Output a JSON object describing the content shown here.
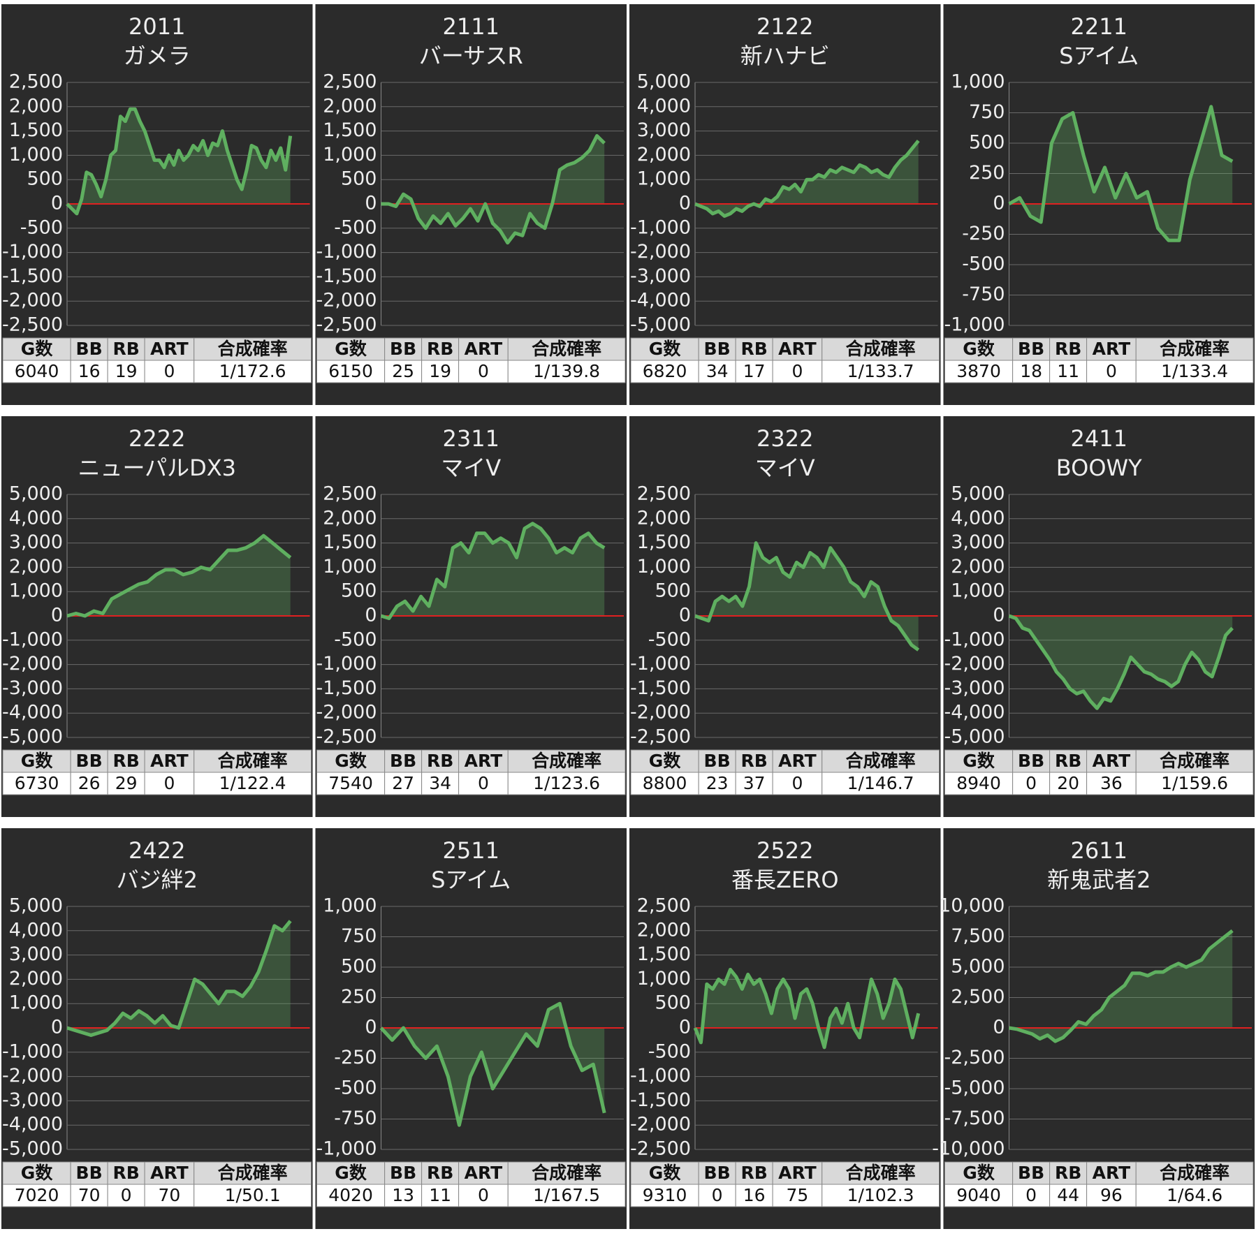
{
  "chart_data": [
    {
      "type": "line",
      "title": "2011",
      "subtitle": "ガメラ",
      "color": "#5fb060",
      "baseline_color": "#e02020",
      "values": [
        0,
        -100,
        -200,
        100,
        650,
        600,
        400,
        150,
        500,
        1000,
        1100,
        1800,
        1700,
        1950,
        1950,
        1700,
        1500,
        1200,
        900,
        900,
        750,
        1000,
        800,
        1100,
        900,
        1000,
        1200,
        1100,
        1300,
        1000,
        1250,
        1200,
        1500,
        1100,
        800,
        500,
        300,
        700,
        1200,
        1150,
        900,
        750,
        1100,
        900,
        1150,
        700,
        1400
      ],
      "ylim": [
        -2500,
        2500
      ],
      "yticks": [
        {
          "value": -2500,
          "label": "-2,500"
        },
        {
          "value": -2000,
          "label": "-2,000"
        },
        {
          "value": -1500,
          "label": "-1,500"
        },
        {
          "value": -1000,
          "label": "-1,000"
        },
        -500,
        0,
        500,
        {
          "value": 1000,
          "label": "1,000"
        },
        {
          "value": 1500,
          "label": "1,500"
        },
        {
          "value": 2000,
          "label": "2,000"
        },
        {
          "value": 2500,
          "label": "2,500"
        }
      ],
      "grid": true,
      "table": {
        "columns": [
          "G数",
          "BB",
          "RB",
          "ART",
          "合成確率"
        ],
        "row": [
          6040,
          16,
          19,
          0,
          "1/172.6"
        ]
      }
    },
    {
      "type": "line",
      "title": "2111",
      "subtitle": "バーサスR",
      "color": "#5fb060",
      "baseline_color": "#e02020",
      "values": [
        0,
        0,
        -50,
        200,
        100,
        -300,
        -500,
        -250,
        -400,
        -200,
        -450,
        -300,
        -100,
        -350,
        0,
        -400,
        -550,
        -800,
        -600,
        -650,
        -200,
        -400,
        -500,
        0,
        700,
        800,
        850,
        950,
        1100,
        1400,
        1250
      ],
      "ylim": [
        -2500,
        2500
      ],
      "yticks": [
        {
          "value": -2500,
          "label": "-2,500"
        },
        {
          "value": -2000,
          "label": "-2,000"
        },
        {
          "value": -1500,
          "label": "-1,500"
        },
        {
          "value": -1000,
          "label": "-1,000"
        },
        -500,
        0,
        500,
        {
          "value": 1000,
          "label": "1,000"
        },
        {
          "value": 1500,
          "label": "1,500"
        },
        {
          "value": 2000,
          "label": "2,000"
        },
        {
          "value": 2500,
          "label": "2,500"
        }
      ],
      "grid": true,
      "table": {
        "columns": [
          "G数",
          "BB",
          "RB",
          "ART",
          "合成確率"
        ],
        "row": [
          6150,
          25,
          19,
          0,
          "1/139.8"
        ]
      }
    },
    {
      "type": "line",
      "title": "2122",
      "subtitle": "新ハナビ",
      "color": "#5fb060",
      "baseline_color": "#e02020",
      "values": [
        0,
        -100,
        -200,
        -400,
        -300,
        -500,
        -400,
        -200,
        -300,
        -100,
        0,
        -100,
        200,
        100,
        300,
        700,
        600,
        800,
        500,
        1000,
        1000,
        1200,
        1100,
        1400,
        1300,
        1500,
        1400,
        1300,
        1600,
        1500,
        1300,
        1400,
        1200,
        1100,
        1500,
        1800,
        2000,
        2300,
        2600
      ],
      "ylim": [
        -5000,
        5000
      ],
      "yticks": [
        {
          "value": -5000,
          "label": "-5,000"
        },
        {
          "value": -4000,
          "label": "-4,000"
        },
        {
          "value": -3000,
          "label": "-3,000"
        },
        {
          "value": -2000,
          "label": "-2,000"
        },
        {
          "value": -1000,
          "label": "-1,000"
        },
        0,
        {
          "value": 1000,
          "label": "1,000"
        },
        {
          "value": 2000,
          "label": "2,000"
        },
        {
          "value": 3000,
          "label": "3,000"
        },
        {
          "value": 4000,
          "label": "4,000"
        },
        {
          "value": 5000,
          "label": "5,000"
        }
      ],
      "grid": true,
      "table": {
        "columns": [
          "G数",
          "BB",
          "RB",
          "ART",
          "合成確率"
        ],
        "row": [
          6820,
          34,
          17,
          0,
          "1/133.7"
        ]
      }
    },
    {
      "type": "line",
      "title": "2211",
      "subtitle": "Sアイム",
      "color": "#5fb060",
      "baseline_color": "#e02020",
      "values": [
        0,
        50,
        -100,
        -150,
        500,
        700,
        750,
        400,
        100,
        300,
        50,
        250,
        50,
        100,
        -200,
        -300,
        -300,
        200,
        500,
        800,
        400,
        350
      ],
      "ylim": [
        -1000,
        1000
      ],
      "yticks": [
        {
          "value": -1000,
          "label": "-1,000"
        },
        -750,
        -500,
        -250,
        0,
        250,
        500,
        750,
        {
          "value": 1000,
          "label": "1,000"
        }
      ],
      "grid": true,
      "table": {
        "columns": [
          "G数",
          "BB",
          "RB",
          "ART",
          "合成確率"
        ],
        "row": [
          3870,
          18,
          11,
          0,
          "1/133.4"
        ]
      }
    },
    {
      "type": "line",
      "title": "2222",
      "subtitle": "ニューパルDX3",
      "color": "#5fb060",
      "baseline_color": "#e02020",
      "values": [
        0,
        100,
        0,
        200,
        100,
        700,
        900,
        1100,
        1300,
        1400,
        1700,
        1900,
        1900,
        1700,
        1800,
        2000,
        1900,
        2300,
        2700,
        2700,
        2800,
        3000,
        3300,
        3000,
        2700,
        2400
      ],
      "ylim": [
        -5000,
        5000
      ],
      "yticks": [
        {
          "value": -5000,
          "label": "-5,000"
        },
        {
          "value": -4000,
          "label": "-4,000"
        },
        {
          "value": -3000,
          "label": "-3,000"
        },
        {
          "value": -2000,
          "label": "-2,000"
        },
        {
          "value": -1000,
          "label": "-1,000"
        },
        0,
        {
          "value": 1000,
          "label": "1,000"
        },
        {
          "value": 2000,
          "label": "2,000"
        },
        {
          "value": 3000,
          "label": "3,000"
        },
        {
          "value": 4000,
          "label": "4,000"
        },
        {
          "value": 5000,
          "label": "5,000"
        }
      ],
      "grid": true,
      "table": {
        "columns": [
          "G数",
          "BB",
          "RB",
          "ART",
          "合成確率"
        ],
        "row": [
          6730,
          26,
          29,
          0,
          "1/122.4"
        ]
      }
    },
    {
      "type": "line",
      "title": "2311",
      "subtitle": "マイV",
      "color": "#5fb060",
      "baseline_color": "#e02020",
      "values": [
        0,
        -50,
        200,
        300,
        100,
        400,
        200,
        750,
        600,
        1400,
        1500,
        1300,
        1700,
        1700,
        1500,
        1600,
        1500,
        1200,
        1800,
        1900,
        1800,
        1600,
        1300,
        1400,
        1300,
        1600,
        1700,
        1500,
        1400
      ],
      "ylim": [
        -2500,
        2500
      ],
      "yticks": [
        {
          "value": -2500,
          "label": "-2,500"
        },
        {
          "value": -2000,
          "label": "-2,000"
        },
        {
          "value": -1500,
          "label": "-1,500"
        },
        {
          "value": -1000,
          "label": "-1,000"
        },
        -500,
        0,
        500,
        {
          "value": 1000,
          "label": "1,000"
        },
        {
          "value": 1500,
          "label": "1,500"
        },
        {
          "value": 2000,
          "label": "2,000"
        },
        {
          "value": 2500,
          "label": "2,500"
        }
      ],
      "grid": true,
      "table": {
        "columns": [
          "G数",
          "BB",
          "RB",
          "ART",
          "合成確率"
        ],
        "row": [
          7540,
          27,
          34,
          0,
          "1/123.6"
        ]
      }
    },
    {
      "type": "line",
      "title": "2322",
      "subtitle": "マイV",
      "color": "#5fb060",
      "baseline_color": "#e02020",
      "values": [
        0,
        -50,
        -100,
        300,
        400,
        300,
        400,
        200,
        600,
        1500,
        1200,
        1100,
        1200,
        900,
        800,
        1100,
        1000,
        1300,
        1200,
        1000,
        1400,
        1200,
        1000,
        700,
        600,
        400,
        700,
        600,
        200,
        -100,
        -200,
        -400,
        -600,
        -700
      ],
      "ylim": [
        -2500,
        2500
      ],
      "yticks": [
        {
          "value": -2500,
          "label": "-2,500"
        },
        {
          "value": -2000,
          "label": "-2,000"
        },
        {
          "value": -1500,
          "label": "-1,500"
        },
        {
          "value": -1000,
          "label": "-1,000"
        },
        -500,
        0,
        500,
        {
          "value": 1000,
          "label": "1,000"
        },
        {
          "value": 1500,
          "label": "1,500"
        },
        {
          "value": 2000,
          "label": "2,000"
        },
        {
          "value": 2500,
          "label": "2,500"
        }
      ],
      "grid": true,
      "table": {
        "columns": [
          "G数",
          "BB",
          "RB",
          "ART",
          "合成確率"
        ],
        "row": [
          8800,
          23,
          37,
          0,
          "1/146.7"
        ]
      }
    },
    {
      "type": "line",
      "title": "2411",
      "subtitle": "BOOWY",
      "color": "#5fb060",
      "baseline_color": "#e02020",
      "values": [
        0,
        -100,
        -500,
        -600,
        -1000,
        -1400,
        -1800,
        -2300,
        -2600,
        -3000,
        -3200,
        -3100,
        -3500,
        -3800,
        -3400,
        -3500,
        -3000,
        -2400,
        -1700,
        -2000,
        -2300,
        -2400,
        -2600,
        -2700,
        -2900,
        -2700,
        -2000,
        -1500,
        -1800,
        -2300,
        -2500,
        -1700,
        -800,
        -500
      ],
      "ylim": [
        -5000,
        5000
      ],
      "yticks": [
        {
          "value": -5000,
          "label": "-5,000"
        },
        {
          "value": -4000,
          "label": "-4,000"
        },
        {
          "value": -3000,
          "label": "-3,000"
        },
        {
          "value": -2000,
          "label": "-2,000"
        },
        {
          "value": -1000,
          "label": "-1,000"
        },
        0,
        {
          "value": 1000,
          "label": "1,000"
        },
        {
          "value": 2000,
          "label": "2,000"
        },
        {
          "value": 3000,
          "label": "3,000"
        },
        {
          "value": 4000,
          "label": "4,000"
        },
        {
          "value": 5000,
          "label": "5,000"
        }
      ],
      "grid": true,
      "table": {
        "columns": [
          "G数",
          "BB",
          "RB",
          "ART",
          "合成確率"
        ],
        "row": [
          8940,
          0,
          20,
          36,
          "1/159.6"
        ]
      }
    },
    {
      "type": "line",
      "title": "2422",
      "subtitle": "バジ絆2",
      "color": "#5fb060",
      "baseline_color": "#e02020",
      "values": [
        0,
        -100,
        -200,
        -300,
        -200,
        -100,
        200,
        600,
        400,
        700,
        500,
        200,
        500,
        100,
        0,
        1000,
        2000,
        1800,
        1400,
        1000,
        1500,
        1500,
        1300,
        1700,
        2300,
        3200,
        4200,
        4000,
        4400
      ],
      "ylim": [
        -5000,
        5000
      ],
      "yticks": [
        {
          "value": -5000,
          "label": "-5,000"
        },
        {
          "value": -4000,
          "label": "-4,000"
        },
        {
          "value": -3000,
          "label": "-3,000"
        },
        {
          "value": -2000,
          "label": "-2,000"
        },
        {
          "value": -1000,
          "label": "-1,000"
        },
        0,
        {
          "value": 1000,
          "label": "1,000"
        },
        {
          "value": 2000,
          "label": "2,000"
        },
        {
          "value": 3000,
          "label": "3,000"
        },
        {
          "value": 4000,
          "label": "4,000"
        },
        {
          "value": 5000,
          "label": "5,000"
        }
      ],
      "grid": true,
      "table": {
        "columns": [
          "G数",
          "BB",
          "RB",
          "ART",
          "合成確率"
        ],
        "row": [
          7020,
          70,
          0,
          70,
          "1/50.1"
        ]
      }
    },
    {
      "type": "line",
      "title": "2511",
      "subtitle": "Sアイム",
      "color": "#5fb060",
      "baseline_color": "#e02020",
      "values": [
        0,
        -100,
        0,
        -150,
        -250,
        -150,
        -400,
        -800,
        -400,
        -200,
        -500,
        -350,
        -200,
        -50,
        -150,
        150,
        200,
        -150,
        -350,
        -300,
        -700
      ],
      "ylim": [
        -1000,
        1000
      ],
      "yticks": [
        {
          "value": -1000,
          "label": "-1,000"
        },
        -750,
        -500,
        -250,
        0,
        250,
        500,
        750,
        {
          "value": 1000,
          "label": "1,000"
        }
      ],
      "grid": true,
      "table": {
        "columns": [
          "G数",
          "BB",
          "RB",
          "ART",
          "合成確率"
        ],
        "row": [
          4020,
          13,
          11,
          0,
          "1/167.5"
        ]
      }
    },
    {
      "type": "line",
      "title": "2522",
      "subtitle": "番長ZERO",
      "color": "#5fb060",
      "baseline_color": "#e02020",
      "values": [
        0,
        -300,
        900,
        800,
        1000,
        900,
        1200,
        1050,
        800,
        1100,
        900,
        1000,
        700,
        300,
        800,
        1000,
        800,
        200,
        700,
        800,
        500,
        0,
        -400,
        200,
        400,
        100,
        500,
        0,
        -200,
        400,
        1000,
        700,
        200,
        500,
        1000,
        800,
        300,
        -200,
        300
      ],
      "ylim": [
        -2500,
        2500
      ],
      "yticks": [
        {
          "value": -2500,
          "label": "-2,500"
        },
        {
          "value": -2000,
          "label": "-2,000"
        },
        {
          "value": -1500,
          "label": "-1,500"
        },
        {
          "value": -1000,
          "label": "-1,000"
        },
        -500,
        0,
        500,
        {
          "value": 1000,
          "label": "1,000"
        },
        {
          "value": 1500,
          "label": "1,500"
        },
        {
          "value": 2000,
          "label": "2,000"
        },
        {
          "value": 2500,
          "label": "2,500"
        }
      ],
      "grid": true,
      "table": {
        "columns": [
          "G数",
          "BB",
          "RB",
          "ART",
          "合成確率"
        ],
        "row": [
          9310,
          0,
          16,
          75,
          "1/102.3"
        ]
      }
    },
    {
      "type": "line",
      "title": "2611",
      "subtitle": "新鬼武者2",
      "color": "#5fb060",
      "baseline_color": "#e02020",
      "values": [
        0,
        -100,
        -300,
        -500,
        -900,
        -600,
        -1100,
        -800,
        -200,
        500,
        300,
        1000,
        1500,
        2500,
        3000,
        3500,
        4500,
        4500,
        4300,
        4600,
        4600,
        5000,
        5300,
        5000,
        5300,
        5600,
        6500,
        7000,
        7500,
        8000
      ],
      "ylim": [
        -10000,
        10000
      ],
      "yticks": [
        {
          "value": -10000,
          "label": "-10,000"
        },
        {
          "value": -7500,
          "label": "-7,500"
        },
        {
          "value": -5000,
          "label": "-5,000"
        },
        {
          "value": -2500,
          "label": "-2,500"
        },
        0,
        {
          "value": 2500,
          "label": "2,500"
        },
        {
          "value": 5000,
          "label": "5,000"
        },
        {
          "value": 7500,
          "label": "7,500"
        },
        {
          "value": 10000,
          "label": "10,000"
        }
      ],
      "grid": true,
      "table": {
        "columns": [
          "G数",
          "BB",
          "RB",
          "ART",
          "合成確率"
        ],
        "row": [
          9040,
          0,
          44,
          96,
          "1/64.6"
        ]
      }
    }
  ]
}
